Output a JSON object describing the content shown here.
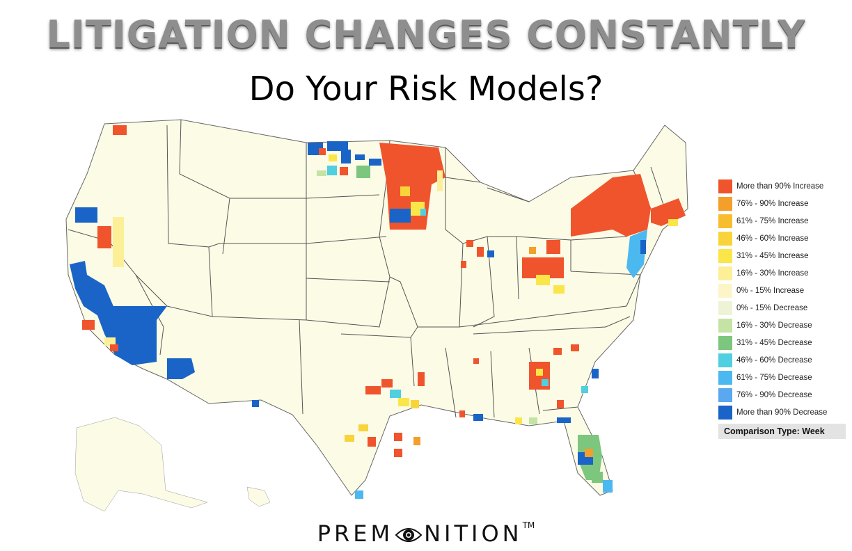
{
  "headline": "LITIGATION CHANGES CONSTANTLY",
  "subhead": "Do Your Risk Models?",
  "legend": {
    "items": [
      {
        "label": "More than 90% Increase",
        "color": "#f0542c"
      },
      {
        "label": "76% - 90% Increase",
        "color": "#f59f2b"
      },
      {
        "label": "61% - 75% Increase",
        "color": "#f7bd2e"
      },
      {
        "label": "46% - 60% Increase",
        "color": "#f9d33a"
      },
      {
        "label": "31% - 45% Increase",
        "color": "#fbe64a"
      },
      {
        "label": "16% - 30% Increase",
        "color": "#fcef97"
      },
      {
        "label": "0% - 15% Increase",
        "color": "#fdf5c8"
      },
      {
        "label": "0% - 15% Decrease",
        "color": "#eef3d6"
      },
      {
        "label": "16% - 30% Decrease",
        "color": "#c5e3a4"
      },
      {
        "label": "31% - 45% Decrease",
        "color": "#7cc67e"
      },
      {
        "label": "46% - 60% Decrease",
        "color": "#4fcfe0"
      },
      {
        "label": "61% - 75% Decrease",
        "color": "#4cb8f0"
      },
      {
        "label": "76% - 90% Decrease",
        "color": "#5aa8f0"
      },
      {
        "label": "More than 90% Decrease",
        "color": "#1a64c8"
      }
    ],
    "comparison": "Comparison Type: Week"
  },
  "map": {
    "base_color": "#fbfbe6",
    "border_color": "#555555",
    "regions": [
      {
        "name": "washington-north",
        "bin": 0
      },
      {
        "name": "northern-minnesota",
        "bin": 0
      },
      {
        "name": "north-dakota-east",
        "bin": 13
      },
      {
        "name": "new-york",
        "bin": 0
      },
      {
        "name": "new-england",
        "bin": 0
      },
      {
        "name": "new-jersey",
        "bin": 11
      },
      {
        "name": "northern-california",
        "bin": 13
      },
      {
        "name": "southern-california",
        "bin": 13
      },
      {
        "name": "arizona-central",
        "bin": 13
      },
      {
        "name": "ohio-cluster",
        "bin": 0
      },
      {
        "name": "texas-cluster",
        "bin": 0
      },
      {
        "name": "florida-central",
        "bin": 9
      },
      {
        "name": "georgia-cluster",
        "bin": 0
      }
    ]
  },
  "logo": {
    "prefix": "PREM",
    "suffix": "NITION",
    "tm": "TM"
  }
}
